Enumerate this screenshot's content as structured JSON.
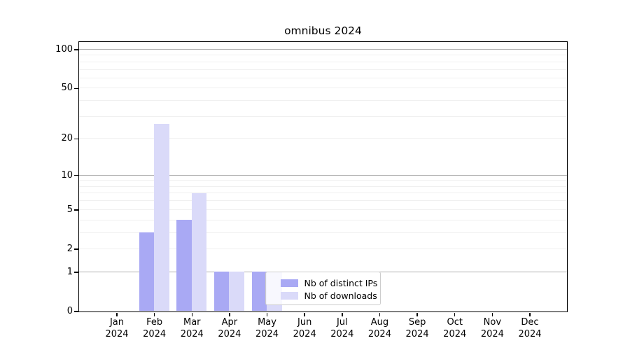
{
  "title": "omnibus 2024",
  "legend": {
    "items": [
      {
        "label": "Nb of distinct IPs"
      },
      {
        "label": "Nb of downloads"
      }
    ]
  },
  "chart_data": {
    "type": "bar",
    "title": "omnibus 2024",
    "xlabel": "",
    "ylabel": "",
    "categories": [
      "Jan",
      "Feb",
      "Mar",
      "Apr",
      "May",
      "Jun",
      "Jul",
      "Aug",
      "Sep",
      "Oct",
      "Nov",
      "Dec"
    ],
    "category_year": "2024",
    "series": [
      {
        "name": "Nb of distinct IPs",
        "color": "#a9a9f4",
        "values": [
          0,
          3,
          4,
          1,
          1,
          0,
          0,
          0,
          0,
          0,
          0,
          0
        ]
      },
      {
        "name": "Nb of downloads",
        "color": "#dadaf9",
        "values": [
          0,
          26,
          7,
          1,
          1,
          0,
          0,
          0,
          0,
          0,
          0,
          0
        ]
      }
    ],
    "yscale": "log1p",
    "ylim": [
      0,
      115
    ],
    "ytick_values": [
      100,
      50,
      20,
      10,
      5,
      2,
      1,
      0
    ],
    "ytick_labels": [
      "100",
      "50",
      "20",
      "10",
      "5",
      "2",
      "1",
      "0"
    ],
    "major_grid_values": [
      1,
      10,
      100
    ],
    "minor_grid_values": [
      2,
      3,
      4,
      5,
      6,
      7,
      8,
      9,
      20,
      30,
      40,
      50,
      60,
      70,
      80,
      90
    ],
    "grid": "horizontal",
    "legend_position": "inside-lower-center",
    "colors": {
      "major_grid": "#b0b0b0",
      "minor_grid": "#f0f0f0",
      "spine": "#000000",
      "background": "#ffffff"
    }
  }
}
